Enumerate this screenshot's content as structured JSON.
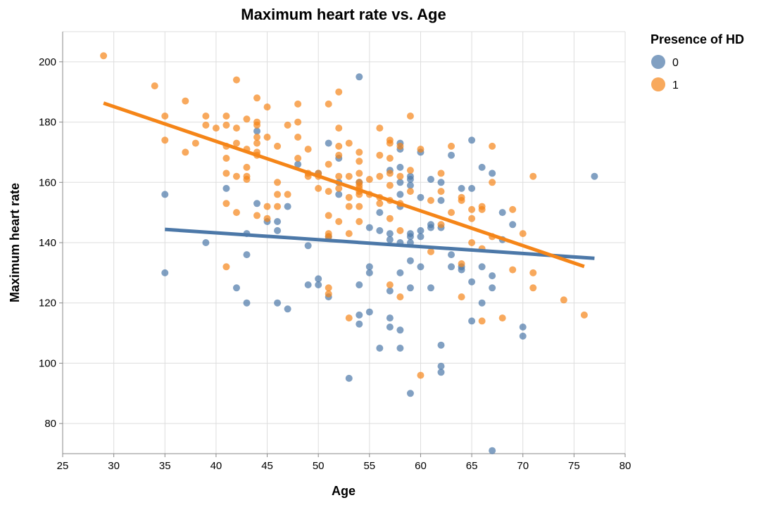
{
  "chart_data": {
    "type": "scatter",
    "title": "Maximum heart rate vs. Age",
    "xlabel": "Age",
    "ylabel": "Maximum heart rate",
    "xlim": [
      25,
      80
    ],
    "ylim": [
      70,
      210
    ],
    "x_ticks": [
      25,
      30,
      35,
      40,
      45,
      50,
      55,
      60,
      65,
      70,
      75,
      80
    ],
    "y_ticks": [
      80,
      100,
      120,
      140,
      160,
      180,
      200
    ],
    "grid": true,
    "legend": {
      "title": "Presence of HD",
      "placement": "right"
    },
    "series": [
      {
        "name": "0",
        "color": "#4c78a8",
        "points": [
          [
            35,
            156
          ],
          [
            35,
            130
          ],
          [
            39,
            140
          ],
          [
            41,
            158
          ],
          [
            42,
            125
          ],
          [
            43,
            143
          ],
          [
            43,
            136
          ],
          [
            43,
            120
          ],
          [
            44,
            177
          ],
          [
            44,
            153
          ],
          [
            45,
            147
          ],
          [
            46,
            147
          ],
          [
            46,
            144
          ],
          [
            46,
            120
          ],
          [
            47,
            152
          ],
          [
            47,
            118
          ],
          [
            48,
            166
          ],
          [
            49,
            139
          ],
          [
            49,
            126
          ],
          [
            50,
            163
          ],
          [
            50,
            128
          ],
          [
            50,
            126
          ],
          [
            51,
            173
          ],
          [
            51,
            142
          ],
          [
            51,
            122
          ],
          [
            52,
            168
          ],
          [
            52,
            160
          ],
          [
            52,
            156
          ],
          [
            53,
            95
          ],
          [
            54,
            195
          ],
          [
            54,
            160
          ],
          [
            54,
            126
          ],
          [
            54,
            116
          ],
          [
            54,
            113
          ],
          [
            55,
            145
          ],
          [
            55,
            132
          ],
          [
            55,
            130
          ],
          [
            55,
            117
          ],
          [
            56,
            150
          ],
          [
            56,
            144
          ],
          [
            56,
            105
          ],
          [
            57,
            164
          ],
          [
            57,
            143
          ],
          [
            57,
            141
          ],
          [
            57,
            124
          ],
          [
            57,
            115
          ],
          [
            57,
            112
          ],
          [
            58,
            173
          ],
          [
            58,
            171
          ],
          [
            58,
            165
          ],
          [
            58,
            160
          ],
          [
            58,
            156
          ],
          [
            58,
            152
          ],
          [
            58,
            140
          ],
          [
            58,
            130
          ],
          [
            58,
            111
          ],
          [
            58,
            105
          ],
          [
            59,
            162
          ],
          [
            59,
            161
          ],
          [
            59,
            159
          ],
          [
            59,
            143
          ],
          [
            59,
            142
          ],
          [
            59,
            140
          ],
          [
            59,
            134
          ],
          [
            59,
            125
          ],
          [
            59,
            90
          ],
          [
            60,
            170
          ],
          [
            60,
            155
          ],
          [
            60,
            144
          ],
          [
            60,
            142
          ],
          [
            60,
            132
          ],
          [
            61,
            161
          ],
          [
            61,
            146
          ],
          [
            61,
            145
          ],
          [
            61,
            125
          ],
          [
            62,
            160
          ],
          [
            62,
            154
          ],
          [
            62,
            145
          ],
          [
            62,
            106
          ],
          [
            62,
            99
          ],
          [
            62,
            97
          ],
          [
            63,
            169
          ],
          [
            63,
            136
          ],
          [
            63,
            132
          ],
          [
            64,
            158
          ],
          [
            64,
            132
          ],
          [
            64,
            131
          ],
          [
            65,
            174
          ],
          [
            65,
            158
          ],
          [
            65,
            127
          ],
          [
            65,
            114
          ],
          [
            66,
            165
          ],
          [
            66,
            132
          ],
          [
            66,
            120
          ],
          [
            67,
            163
          ],
          [
            67,
            129
          ],
          [
            67,
            125
          ],
          [
            67,
            71
          ],
          [
            68,
            150
          ],
          [
            68,
            141
          ],
          [
            69,
            146
          ],
          [
            70,
            112
          ],
          [
            70,
            109
          ],
          [
            77,
            162
          ]
        ],
        "trend": [
          [
            35,
            144.4
          ],
          [
            77,
            134.8
          ]
        ]
      },
      {
        "name": "1",
        "color": "#f58518",
        "points": [
          [
            29,
            202
          ],
          [
            34,
            192
          ],
          [
            35,
            182
          ],
          [
            35,
            174
          ],
          [
            37,
            187
          ],
          [
            37,
            170
          ],
          [
            38,
            173
          ],
          [
            39,
            182
          ],
          [
            39,
            179
          ],
          [
            40,
            178
          ],
          [
            41,
            182
          ],
          [
            41,
            179
          ],
          [
            41,
            172
          ],
          [
            41,
            168
          ],
          [
            41,
            163
          ],
          [
            41,
            153
          ],
          [
            41,
            132
          ],
          [
            42,
            194
          ],
          [
            42,
            178
          ],
          [
            42,
            173
          ],
          [
            42,
            162
          ],
          [
            42,
            150
          ],
          [
            43,
            181
          ],
          [
            43,
            171
          ],
          [
            43,
            165
          ],
          [
            43,
            162
          ],
          [
            43,
            161
          ],
          [
            44,
            188
          ],
          [
            44,
            180
          ],
          [
            44,
            179
          ],
          [
            44,
            175
          ],
          [
            44,
            173
          ],
          [
            44,
            170
          ],
          [
            44,
            169
          ],
          [
            44,
            149
          ],
          [
            45,
            185
          ],
          [
            45,
            175
          ],
          [
            45,
            152
          ],
          [
            45,
            148
          ],
          [
            46,
            172
          ],
          [
            46,
            160
          ],
          [
            46,
            156
          ],
          [
            46,
            152
          ],
          [
            47,
            179
          ],
          [
            47,
            156
          ],
          [
            48,
            186
          ],
          [
            48,
            180
          ],
          [
            48,
            175
          ],
          [
            48,
            168
          ],
          [
            49,
            171
          ],
          [
            49,
            163
          ],
          [
            49,
            162
          ],
          [
            50,
            163
          ],
          [
            50,
            162
          ],
          [
            50,
            158
          ],
          [
            51,
            186
          ],
          [
            51,
            166
          ],
          [
            51,
            157
          ],
          [
            51,
            149
          ],
          [
            51,
            143
          ],
          [
            51,
            142
          ],
          [
            51,
            125
          ],
          [
            51,
            123
          ],
          [
            52,
            190
          ],
          [
            52,
            178
          ],
          [
            52,
            172
          ],
          [
            52,
            169
          ],
          [
            52,
            162
          ],
          [
            52,
            158
          ],
          [
            52,
            147
          ],
          [
            53,
            173
          ],
          [
            53,
            162
          ],
          [
            53,
            155
          ],
          [
            53,
            152
          ],
          [
            53,
            143
          ],
          [
            53,
            115
          ],
          [
            54,
            170
          ],
          [
            54,
            167
          ],
          [
            54,
            163
          ],
          [
            54,
            160
          ],
          [
            54,
            159
          ],
          [
            54,
            158
          ],
          [
            54,
            157
          ],
          [
            54,
            156
          ],
          [
            54,
            152
          ],
          [
            54,
            147
          ],
          [
            55,
            161
          ],
          [
            55,
            156
          ],
          [
            56,
            178
          ],
          [
            56,
            169
          ],
          [
            56,
            162
          ],
          [
            56,
            155
          ],
          [
            56,
            153
          ],
          [
            57,
            174
          ],
          [
            57,
            173
          ],
          [
            57,
            168
          ],
          [
            57,
            163
          ],
          [
            57,
            159
          ],
          [
            57,
            154
          ],
          [
            57,
            148
          ],
          [
            57,
            126
          ],
          [
            58,
            172
          ],
          [
            58,
            162
          ],
          [
            58,
            153
          ],
          [
            58,
            144
          ],
          [
            58,
            122
          ],
          [
            59,
            182
          ],
          [
            59,
            164
          ],
          [
            59,
            157
          ],
          [
            60,
            171
          ],
          [
            60,
            96
          ],
          [
            61,
            154
          ],
          [
            61,
            137
          ],
          [
            62,
            163
          ],
          [
            62,
            157
          ],
          [
            62,
            146
          ],
          [
            63,
            172
          ],
          [
            63,
            150
          ],
          [
            64,
            155
          ],
          [
            64,
            154
          ],
          [
            64,
            133
          ],
          [
            64,
            122
          ],
          [
            65,
            151
          ],
          [
            65,
            148
          ],
          [
            65,
            140
          ],
          [
            66,
            152
          ],
          [
            66,
            151
          ],
          [
            66,
            138
          ],
          [
            66,
            114
          ],
          [
            67,
            172
          ],
          [
            67,
            160
          ],
          [
            67,
            142
          ],
          [
            68,
            115
          ],
          [
            69,
            151
          ],
          [
            69,
            131
          ],
          [
            70,
            143
          ],
          [
            71,
            162
          ],
          [
            71,
            130
          ],
          [
            71,
            125
          ],
          [
            74,
            121
          ],
          [
            76,
            116
          ]
        ],
        "trend": [
          [
            29,
            186.3
          ],
          [
            76,
            132.1
          ]
        ]
      }
    ]
  }
}
